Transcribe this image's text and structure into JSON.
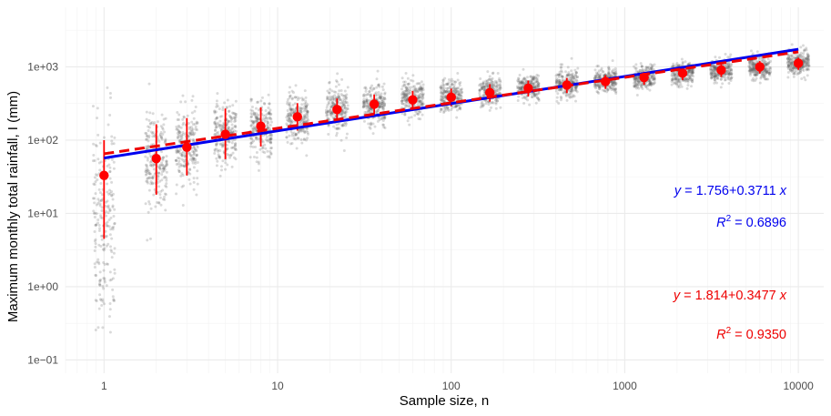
{
  "chart_data": {
    "type": "scatter",
    "title": "",
    "xlabel": "Sample size, n",
    "ylabel": "Maximum monthly total rainfall, I (mm)",
    "x_scale": "log10",
    "y_scale": "log10",
    "xlim": [
      0.6,
      14000
    ],
    "ylim": [
      0.066,
      6500
    ],
    "x_ticks": [
      {
        "value": 1,
        "label": "1"
      },
      {
        "value": 10,
        "label": "10"
      },
      {
        "value": 100,
        "label": "100"
      },
      {
        "value": 1000,
        "label": "1000"
      },
      {
        "value": 10000,
        "label": "10000"
      }
    ],
    "y_ticks": [
      {
        "value": 0.1,
        "label": "1e−01"
      },
      {
        "value": 1,
        "label": "1e+00"
      },
      {
        "value": 10,
        "label": "1e+01"
      },
      {
        "value": 100,
        "label": "1e+02"
      },
      {
        "value": 1000,
        "label": "1e+03"
      }
    ],
    "grid": true,
    "legend": "none",
    "sample_sizes": [
      1,
      2,
      3,
      5,
      8,
      13,
      22,
      36,
      60,
      100,
      167,
      278,
      464,
      774,
      1292,
      2154,
      3594,
      5995,
      10000
    ],
    "series": [
      {
        "kind": "jittered-points",
        "color": "#555555",
        "mean_log10": [
          1.05,
          1.72,
          1.88,
          2.08,
          2.15,
          2.3,
          2.42,
          2.5,
          2.57,
          2.6,
          2.66,
          2.72,
          2.77,
          2.82,
          2.86,
          2.91,
          2.95,
          3.0,
          3.05
        ],
        "sd_log10": [
          0.6,
          0.32,
          0.27,
          0.23,
          0.2,
          0.17,
          0.15,
          0.13,
          0.12,
          0.11,
          0.1,
          0.09,
          0.09,
          0.08,
          0.08,
          0.08,
          0.08,
          0.08,
          0.08
        ]
      },
      {
        "kind": "mean-with-error-bars",
        "color": "#ff0000",
        "mean": [
          33,
          56,
          80,
          120,
          155,
          208,
          262,
          310,
          355,
          385,
          445,
          510,
          565,
          630,
          715,
          820,
          905,
          1000,
          1120
        ],
        "lower": [
          4.5,
          18,
          33,
          55,
          82,
          135,
          185,
          225,
          262,
          290,
          335,
          395,
          440,
          500,
          570,
          660,
          730,
          810,
          910
        ],
        "upper": [
          100,
          165,
          200,
          270,
          280,
          320,
          370,
          420,
          470,
          505,
          580,
          650,
          705,
          770,
          860,
          975,
          1080,
          1200,
          1330
        ]
      },
      {
        "kind": "fit-line",
        "color": "#0000ee",
        "dash": "solid",
        "intercept": 1.756,
        "slope": 0.3711,
        "x_range": [
          1,
          10000
        ]
      },
      {
        "kind": "fit-line",
        "color": "#ee0000",
        "dash": "dashed",
        "intercept": 1.814,
        "slope": 0.3477,
        "x_range": [
          1,
          10000
        ]
      }
    ],
    "annotations": {
      "blue_eq": {
        "y": "y",
        "intercept": "1.756",
        "plus": "+",
        "slope": "0.3711",
        "x": "x",
        "color": "#0000ee"
      },
      "blue_r2": {
        "R": "R",
        "sup": "2",
        "rest": " = 0.6896",
        "color": "#0000ee"
      },
      "red_eq": {
        "y": "y",
        "intercept": "1.814",
        "plus": "+",
        "slope": "0.3477",
        "x": "x",
        "color": "#ee0000"
      },
      "red_r2": {
        "R": "R",
        "sup": "2",
        "rest": " = 0.9350",
        "color": "#ee0000"
      }
    }
  }
}
